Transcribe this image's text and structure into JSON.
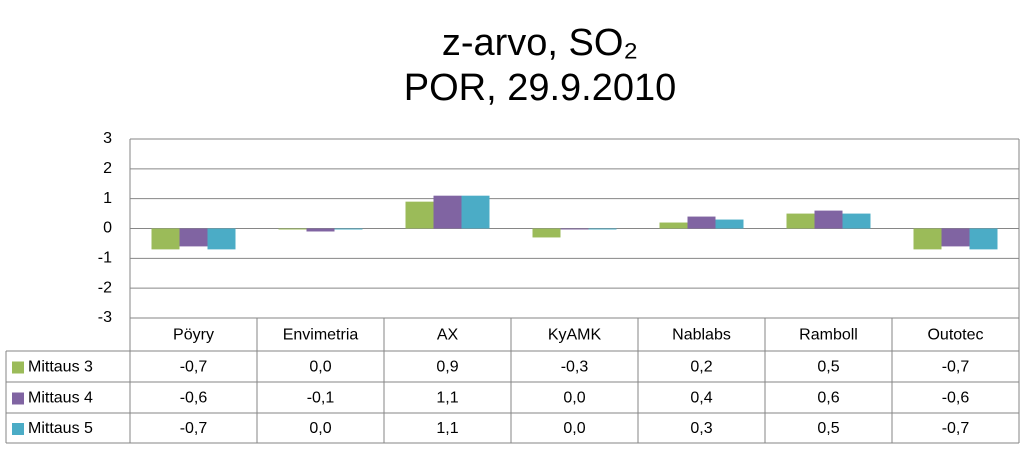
{
  "chart_data": {
    "type": "bar",
    "title": [
      "z-arvo, SO₂",
      "POR, 29.9.2010"
    ],
    "categories": [
      "Pöyry",
      "Envimetria",
      "AX",
      "KyAMK",
      "Nablabs",
      "Ramboll",
      "Outotec"
    ],
    "series": [
      {
        "name": "Mittaus 3",
        "color": "#9bbb59",
        "values": [
          -0.7,
          0,
          0.9,
          -0.3,
          0.2,
          0.5,
          -0.7
        ],
        "value_labels": [
          "-0,7",
          "0,0",
          "0,9",
          "-0,3",
          "0,2",
          "0,5",
          "-0,7"
        ]
      },
      {
        "name": "Mittaus 4",
        "color": "#8064a2",
        "values": [
          -0.6,
          -0.1,
          1.1,
          0,
          0.4,
          0.6,
          -0.6
        ],
        "value_labels": [
          "-0,6",
          "-0,1",
          "1,1",
          "0,0",
          "0,4",
          "0,6",
          "-0,6"
        ]
      },
      {
        "name": "Mittaus 5",
        "color": "#4bacc6",
        "values": [
          -0.7,
          0,
          1.1,
          0,
          0.3,
          0.5,
          -0.7
        ],
        "value_labels": [
          "-0,7",
          "0,0",
          "1,1",
          "0,0",
          "0,3",
          "0,5",
          "-0,7"
        ]
      }
    ],
    "ylim": [
      -3,
      3
    ],
    "yticks": [
      3,
      2,
      1,
      0,
      -1,
      -2,
      -3
    ],
    "grid": true
  }
}
